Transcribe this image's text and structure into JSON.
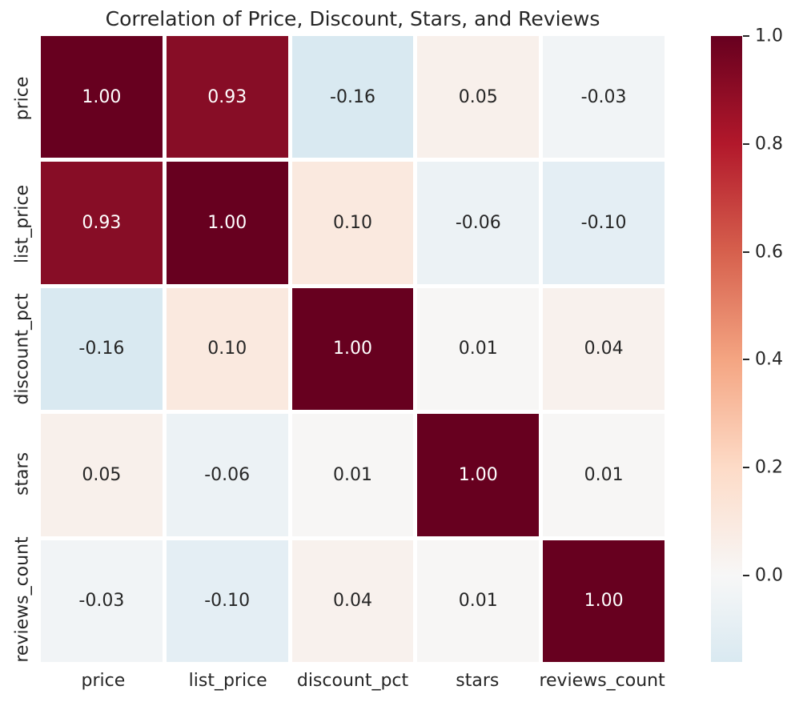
{
  "title": "Correlation of Price, Discount, Stars, and Reviews",
  "chart_data": {
    "type": "heatmap",
    "title": "Correlation of Price, Discount, Stars, and Reviews",
    "categories": [
      "price",
      "list_price",
      "discount_pct",
      "stars",
      "reviews_count"
    ],
    "x_tick_labels": [
      "price",
      "list_price",
      "discount_pct",
      "stars",
      "reviews_count"
    ],
    "y_tick_labels": [
      "price",
      "list_price",
      "discount_pct",
      "stars",
      "reviews_count"
    ],
    "matrix": [
      [
        1.0,
        0.93,
        -0.16,
        0.05,
        -0.03
      ],
      [
        0.93,
        1.0,
        0.1,
        -0.06,
        -0.1
      ],
      [
        -0.16,
        0.1,
        1.0,
        0.01,
        0.04
      ],
      [
        0.05,
        -0.06,
        0.01,
        1.0,
        0.01
      ],
      [
        -0.03,
        -0.1,
        0.04,
        0.01,
        1.0
      ]
    ],
    "cell_text": [
      [
        "1.00",
        "0.93",
        "-0.16",
        "0.05",
        "-0.03"
      ],
      [
        "0.93",
        "1.00",
        "0.10",
        "-0.06",
        "-0.10"
      ],
      [
        "-0.16",
        "0.10",
        "1.00",
        "0.01",
        "0.04"
      ],
      [
        "0.05",
        "-0.06",
        "0.01",
        "1.00",
        "0.01"
      ],
      [
        "-0.03",
        "-0.10",
        "0.04",
        "0.01",
        "1.00"
      ]
    ],
    "cell_colors": [
      [
        "#67001f",
        "#870d26",
        "#d9e9f1",
        "#f8f0eb",
        "#f1f4f6"
      ],
      [
        "#870d26",
        "#67001f",
        "#fae9df",
        "#ecf2f5",
        "#e4eef4"
      ],
      [
        "#d9e9f1",
        "#fae9df",
        "#67001f",
        "#f7f6f5",
        "#f8f1ed"
      ],
      [
        "#f8f0eb",
        "#ecf2f5",
        "#f7f6f5",
        "#67001f",
        "#f7f6f5"
      ],
      [
        "#f1f4f6",
        "#e4eef4",
        "#f8f1ed",
        "#f7f6f5",
        "#67001f"
      ]
    ],
    "cell_text_colors": [
      [
        "#ffffff",
        "#ffffff",
        "#262626",
        "#262626",
        "#262626"
      ],
      [
        "#ffffff",
        "#ffffff",
        "#262626",
        "#262626",
        "#262626"
      ],
      [
        "#262626",
        "#262626",
        "#ffffff",
        "#262626",
        "#262626"
      ],
      [
        "#262626",
        "#262626",
        "#262626",
        "#ffffff",
        "#262626"
      ],
      [
        "#262626",
        "#262626",
        "#262626",
        "#262626",
        "#ffffff"
      ]
    ],
    "colormap": "RdBu_r",
    "center": 0,
    "vmin": -0.16,
    "vmax": 1.0,
    "grid": "white lines between cells",
    "legend_position": "right colorbar",
    "colorbar": {
      "ticks": [
        {
          "label": "1.0",
          "pct": 0
        },
        {
          "label": "0.8",
          "pct": 17.241
        },
        {
          "label": "0.6",
          "pct": 34.483
        },
        {
          "label": "0.4",
          "pct": 51.724
        },
        {
          "label": "0.2",
          "pct": 68.966
        },
        {
          "label": "0.0",
          "pct": 86.207
        }
      ],
      "gradient": [
        {
          "color": "#67001f",
          "pct": 0
        },
        {
          "color": "#b2182b",
          "pct": 17.241
        },
        {
          "color": "#d6604d",
          "pct": 34.483
        },
        {
          "color": "#f4a582",
          "pct": 51.724
        },
        {
          "color": "#fddbc7",
          "pct": 68.966
        },
        {
          "color": "#f7f7f7",
          "pct": 86.207
        },
        {
          "color": "#d9e9f1",
          "pct": 100
        }
      ]
    },
    "colors": {
      "background": "#ffffff",
      "text": "#262626",
      "annot_light": "#ffffff",
      "max_color": "#67001f"
    }
  }
}
